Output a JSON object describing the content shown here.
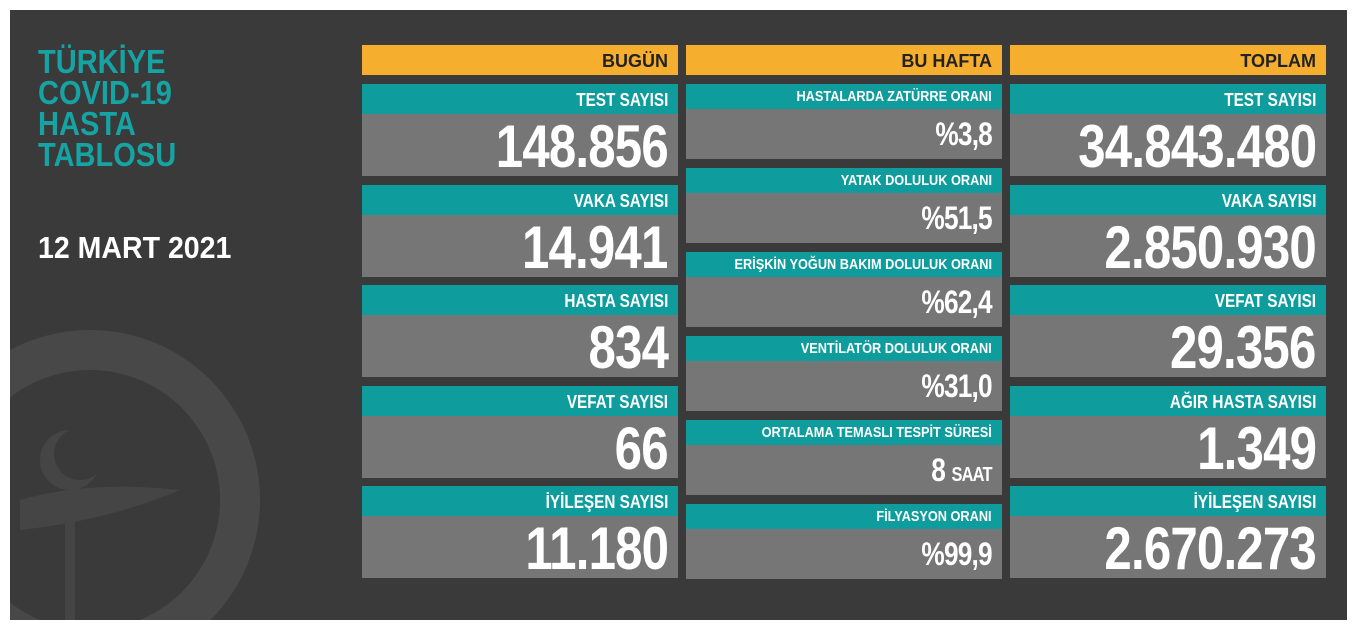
{
  "header": {
    "title_lines": [
      "TÜRKİYE",
      "COVID-19",
      "HASTA",
      "TABLOSU"
    ],
    "date": "12 MART 2021"
  },
  "columns": [
    {
      "header": "BUGÜN",
      "items": [
        {
          "label": "TEST SAYISI",
          "value": "148.856"
        },
        {
          "label": "VAKA SAYISI",
          "value": "14.941"
        },
        {
          "label": "HASTA SAYISI",
          "value": "834"
        },
        {
          "label": "VEFAT SAYISI",
          "value": "66"
        },
        {
          "label": "İYİLEŞEN SAYISI",
          "value": "11.180"
        }
      ]
    },
    {
      "header": "BU HAFTA",
      "items": [
        {
          "label": "HASTALARDA ZATÜRRE ORANI",
          "value": "%3,8"
        },
        {
          "label": "YATAK DOLULUK ORANI",
          "value": "%51,5"
        },
        {
          "label": "ERİŞKİN YOĞUN BAKIM DOLULUK ORANI",
          "value": "%62,4"
        },
        {
          "label": "VENTİLATÖR DOLULUK ORANI",
          "value": "%31,0"
        },
        {
          "label": "ORTALAMA TEMASLI TESPİT SÜRESİ",
          "value": "8",
          "unit": "SAAT"
        },
        {
          "label": "FİLYASYON ORANI",
          "value": "%99,9"
        }
      ]
    },
    {
      "header": "TOPLAM",
      "items": [
        {
          "label": "TEST SAYISI",
          "value": "34.843.480"
        },
        {
          "label": "VAKA SAYISI",
          "value": "2.850.930"
        },
        {
          "label": "VEFAT SAYISI",
          "value": "29.356"
        },
        {
          "label": "AĞIR HASTA SAYISI",
          "value": "1.349"
        },
        {
          "label": "İYİLEŞEN SAYISI",
          "value": "2.670.273"
        }
      ]
    }
  ]
}
